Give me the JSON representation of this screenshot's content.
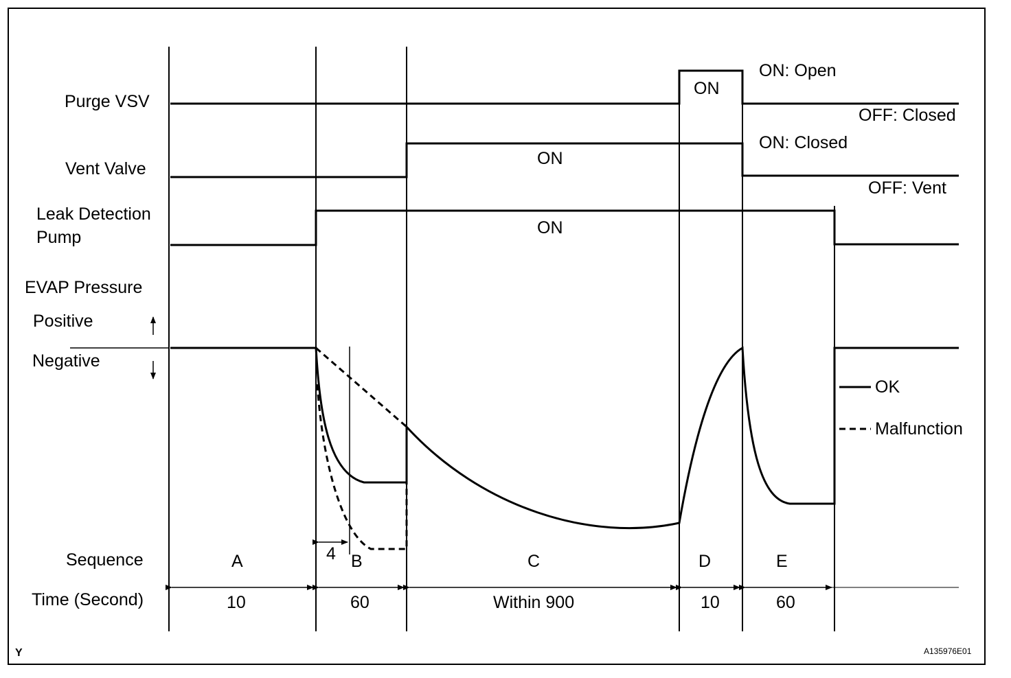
{
  "signals": {
    "purge_vsv": "Purge VSV",
    "vent_valve": "Vent Valve",
    "leak_pump_line1": "Leak Detection",
    "leak_pump_line2": "Pump",
    "evap_pressure": "EVAP Pressure",
    "positive": "Positive",
    "negative": "Negative"
  },
  "states": {
    "purge_on": "ON",
    "purge_on_desc": "ON: Open",
    "purge_off_desc": "OFF: Closed",
    "vent_on": "ON",
    "vent_on_desc": "ON: Closed",
    "vent_off_desc": "OFF: Vent",
    "pump_on": "ON"
  },
  "legend": {
    "ok": "OK",
    "malfunction": "Malfunction"
  },
  "sequence": {
    "label": "Sequence",
    "steps": [
      "A",
      "B",
      "C",
      "D",
      "E"
    ],
    "sub_interval": "4"
  },
  "time": {
    "label": "Time (Second)",
    "values": [
      "10",
      "60",
      "Within 900",
      "10",
      "60"
    ]
  },
  "footer": {
    "corner_mark": "Y",
    "figure_code": "A135976E01"
  }
}
